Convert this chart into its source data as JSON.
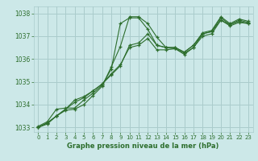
{
  "xlabel": "Graphe pression niveau de la mer (hPa)",
  "background_color": "#cce8e8",
  "grid_color": "#aacccc",
  "line_color": "#2d6e2d",
  "marker": "+",
  "xlim": [
    -0.5,
    23.5
  ],
  "ylim": [
    1032.8,
    1038.3
  ],
  "yticks": [
    1033,
    1034,
    1035,
    1036,
    1037,
    1038
  ],
  "xticks": [
    0,
    1,
    2,
    3,
    4,
    5,
    6,
    7,
    8,
    9,
    10,
    11,
    12,
    13,
    14,
    15,
    16,
    17,
    18,
    19,
    20,
    21,
    22,
    23
  ],
  "series": [
    [
      1033.0,
      1033.2,
      1033.5,
      1033.8,
      1034.1,
      1034.3,
      1034.6,
      1034.9,
      1035.3,
      1035.7,
      1036.6,
      1036.7,
      1037.1,
      1036.6,
      1036.5,
      1036.5,
      1036.3,
      1036.6,
      1037.1,
      1037.2,
      1037.8,
      1037.5,
      1037.7,
      1037.6
    ],
    [
      1033.0,
      1033.2,
      1033.5,
      1033.8,
      1034.2,
      1034.35,
      1034.6,
      1034.9,
      1035.35,
      1035.75,
      1036.5,
      1036.6,
      1036.9,
      1036.4,
      1036.4,
      1036.45,
      1036.25,
      1036.5,
      1037.0,
      1037.1,
      1037.7,
      1037.45,
      1037.6,
      1037.55
    ],
    [
      1033.05,
      1033.25,
      1033.8,
      1033.85,
      1033.85,
      1034.2,
      1034.5,
      1034.85,
      1035.55,
      1037.55,
      1037.8,
      1037.8,
      1037.3,
      1036.6,
      1036.5,
      1036.5,
      1036.3,
      1036.6,
      1037.15,
      1037.25,
      1037.85,
      1037.55,
      1037.75,
      1037.65
    ],
    [
      1033.0,
      1033.15,
      1033.5,
      1033.75,
      1033.8,
      1034.0,
      1034.4,
      1034.8,
      1035.65,
      1036.55,
      1037.85,
      1037.85,
      1037.55,
      1036.95,
      1036.5,
      1036.45,
      1036.2,
      1036.5,
      1037.1,
      1037.2,
      1037.7,
      1037.5,
      1037.65,
      1037.55
    ]
  ]
}
